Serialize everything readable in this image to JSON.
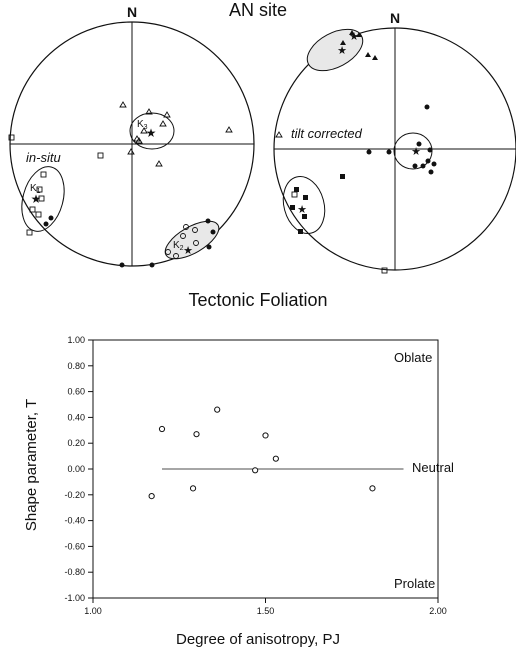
{
  "page": {
    "title": "AN site",
    "section_title": "Tectonic Foliation"
  },
  "stereonets": [
    {
      "north_label": "N",
      "caption": "in-situ",
      "labels": [
        "K1",
        "K2",
        "K3"
      ]
    },
    {
      "north_label": "N",
      "caption": "tilt corrected"
    }
  ],
  "chart_data": {
    "type": "scatter",
    "title": "",
    "xlabel": "Degree of anisotropy, PJ",
    "ylabel": "Shape parameter, T",
    "xlim": [
      1.0,
      2.0
    ],
    "ylim": [
      -1.0,
      1.0
    ],
    "x_ticks": [
      "1.00",
      "1.50",
      "2.00"
    ],
    "y_ticks": [
      "1.00",
      "0.80",
      "0.60",
      "0.40",
      "0.20",
      "0.00",
      "-0.20",
      "-0.40",
      "-0.60",
      "-0.80",
      "-1.00"
    ],
    "grid": false,
    "reference_line": {
      "y": 0.0,
      "label": "Neutral"
    },
    "region_labels": {
      "top": "Oblate",
      "bottom": "Prolate"
    },
    "points": [
      {
        "x": 1.17,
        "y": -0.21
      },
      {
        "x": 1.2,
        "y": 0.31
      },
      {
        "x": 1.29,
        "y": -0.15
      },
      {
        "x": 1.3,
        "y": 0.27
      },
      {
        "x": 1.36,
        "y": 0.46
      },
      {
        "x": 1.47,
        "y": -0.01
      },
      {
        "x": 1.5,
        "y": 0.26
      },
      {
        "x": 1.53,
        "y": 0.08
      },
      {
        "x": 1.81,
        "y": -0.15
      }
    ]
  }
}
